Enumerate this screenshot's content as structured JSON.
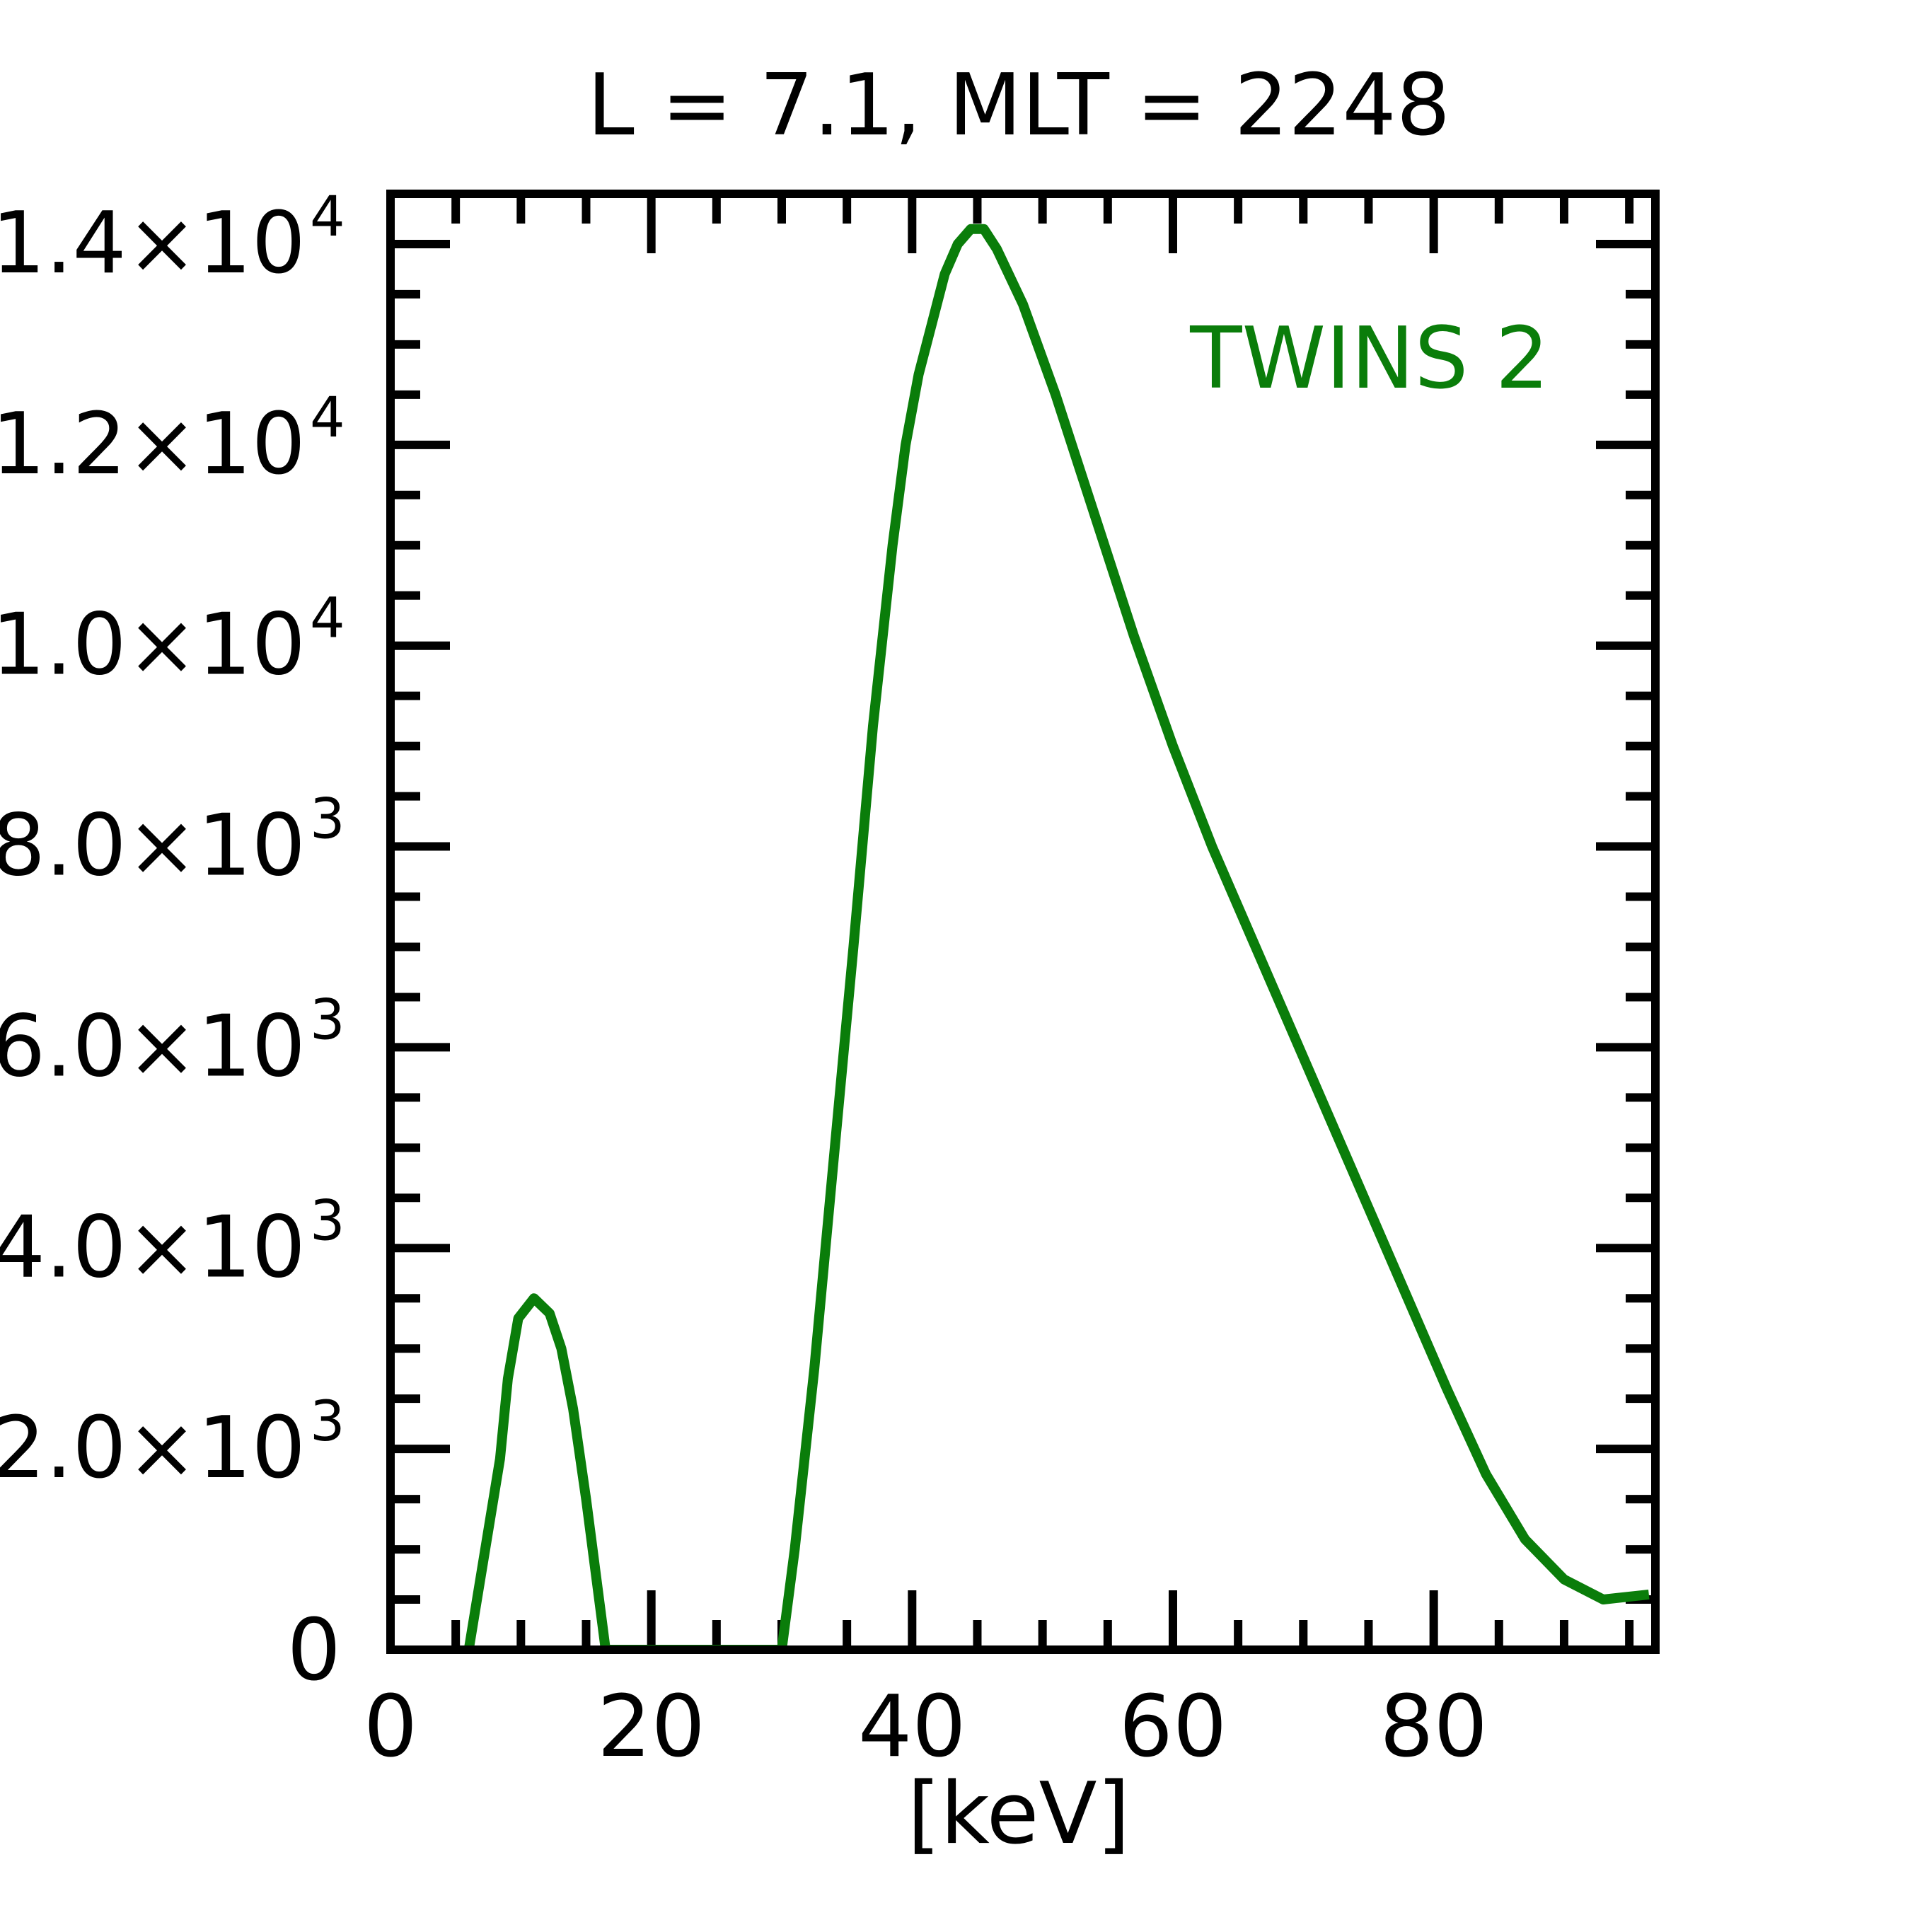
{
  "chart_data": {
    "type": "line",
    "title": "L =  7.1, MLT = 2248",
    "xlabel": "[keV]",
    "ylabel": "",
    "xlim": [
      0,
      97
    ],
    "ylim": [
      0,
      14500
    ],
    "x_major_ticks": [
      0,
      20,
      40,
      60,
      80
    ],
    "x_tick_labels": [
      "0",
      "20",
      "40",
      "60",
      "80"
    ],
    "x_minor_step": 5,
    "y_major_ticks": [
      0,
      2000,
      4000,
      6000,
      8000,
      10000,
      12000,
      14000
    ],
    "y_tick_labels": [
      {
        "mantissa": "0",
        "exponent": ""
      },
      {
        "mantissa": "2.0×10",
        "exponent": "3"
      },
      {
        "mantissa": "4.0×10",
        "exponent": "3"
      },
      {
        "mantissa": "6.0×10",
        "exponent": "3"
      },
      {
        "mantissa": "8.0×10",
        "exponent": "3"
      },
      {
        "mantissa": "1.0×10",
        "exponent": "4"
      },
      {
        "mantissa": "1.2×10",
        "exponent": "4"
      },
      {
        "mantissa": "1.4×10",
        "exponent": "4"
      }
    ],
    "y_minor_step": 500,
    "grid": false,
    "legend_position": "top-right",
    "series": [
      {
        "name": "TWINS 2",
        "color": "#0a7d0a",
        "points": [
          [
            6.0,
            0
          ],
          [
            8.4,
            1900
          ],
          [
            9.0,
            2700
          ],
          [
            9.8,
            3300
          ],
          [
            11.0,
            3500
          ],
          [
            12.2,
            3350
          ],
          [
            13.1,
            3000
          ],
          [
            14.0,
            2400
          ],
          [
            15.0,
            1500
          ],
          [
            16.5,
            0
          ],
          [
            30.0,
            0
          ],
          [
            31.0,
            1000
          ],
          [
            32.5,
            2800
          ],
          [
            34.0,
            4900
          ],
          [
            35.5,
            7000
          ],
          [
            37.0,
            9200
          ],
          [
            38.5,
            11000
          ],
          [
            39.5,
            12000
          ],
          [
            40.5,
            12700
          ],
          [
            41.5,
            13200
          ],
          [
            42.5,
            13700
          ],
          [
            43.5,
            14000
          ],
          [
            44.5,
            14150
          ],
          [
            45.5,
            14150
          ],
          [
            46.5,
            13950
          ],
          [
            48.5,
            13400
          ],
          [
            51.0,
            12500
          ],
          [
            54.0,
            11300
          ],
          [
            57.0,
            10100
          ],
          [
            60.0,
            9000
          ],
          [
            63.0,
            8000
          ],
          [
            66.0,
            7100
          ],
          [
            69.0,
            6200
          ],
          [
            72.0,
            5300
          ],
          [
            75.0,
            4400
          ],
          [
            78.0,
            3500
          ],
          [
            81.0,
            2600
          ],
          [
            84.0,
            1750
          ],
          [
            87.0,
            1100
          ],
          [
            90.0,
            700
          ],
          [
            93.0,
            500
          ],
          [
            96.5,
            550
          ]
        ]
      }
    ]
  }
}
